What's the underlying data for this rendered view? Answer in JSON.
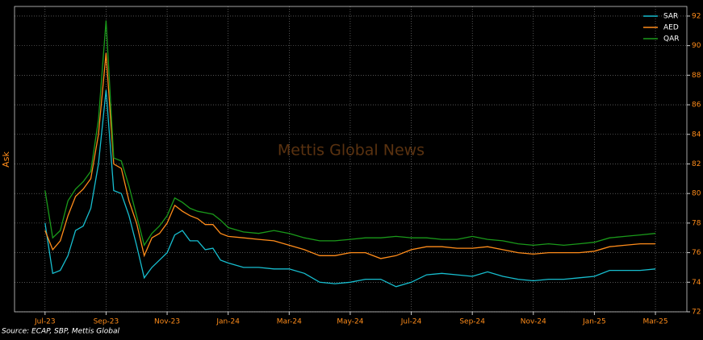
{
  "chart_data": {
    "type": "line",
    "watermark": "Mettis Global News",
    "ylabel": "Ask",
    "source": "Source: ECAP, SBP, Mettis Global",
    "legend": "upper right",
    "grid": true,
    "x": [
      0,
      0.25,
      0.5,
      0.75,
      1,
      1.25,
      1.5,
      1.75,
      2,
      2.25,
      2.5,
      2.75,
      3,
      3.25,
      3.5,
      3.75,
      4,
      4.25,
      4.5,
      4.75,
      5,
      5.25,
      5.5,
      5.75,
      6,
      6.5,
      7,
      7.5,
      8,
      8.5,
      9,
      9.5,
      10,
      10.5,
      11,
      11.5,
      12,
      12.5,
      13,
      13.5,
      14,
      14.5,
      15,
      15.5,
      16,
      16.5,
      17,
      17.5,
      18,
      18.5,
      19,
      19.5,
      20
    ],
    "xlim": [
      -1,
      21.03
    ],
    "xticks": [
      {
        "value": 0,
        "label": "Jul-23"
      },
      {
        "value": 2,
        "label": "Sep-23"
      },
      {
        "value": 4,
        "label": "Nov-23"
      },
      {
        "value": 6,
        "label": "Jan-24"
      },
      {
        "value": 8,
        "label": "Mar-24"
      },
      {
        "value": 10,
        "label": "May-24"
      },
      {
        "value": 12,
        "label": "Jul-24"
      },
      {
        "value": 14,
        "label": "Sep-24"
      },
      {
        "value": 16,
        "label": "Nov-24"
      },
      {
        "value": 18,
        "label": "Jan-25"
      },
      {
        "value": 20,
        "label": "Mar-25"
      }
    ],
    "ylim": [
      72,
      92.65
    ],
    "yticks": [
      72,
      74,
      76,
      78,
      80,
      82,
      84,
      86,
      88,
      90,
      92
    ],
    "series": [
      {
        "name": "SAR",
        "color": "#17becf",
        "values": [
          78.0,
          74.6,
          74.8,
          75.8,
          77.5,
          77.8,
          79,
          82,
          87,
          80.2,
          80.0,
          78.5,
          76.5,
          74.3,
          75.0,
          75.5,
          76.0,
          77.2,
          77.5,
          76.8,
          76.8,
          76.2,
          76.3,
          75.5,
          75.3,
          75.0,
          75.0,
          74.9,
          74.9,
          74.6,
          74.0,
          73.9,
          74.0,
          74.2,
          74.2,
          73.7,
          74.0,
          74.5,
          74.6,
          74.5,
          74.4,
          74.7,
          74.4,
          74.2,
          74.1,
          74.2,
          74.2,
          74.3,
          74.4,
          74.8,
          74.8,
          74.8,
          74.9
        ]
      },
      {
        "name": "AED",
        "color": "#ff8c1a",
        "values": [
          77.5,
          76.2,
          76.8,
          78.5,
          79.8,
          80.3,
          81.0,
          84,
          89.5,
          82,
          81.7,
          79.5,
          78,
          75.8,
          77.0,
          77.3,
          78.0,
          79.2,
          78.8,
          78.5,
          78.3,
          77.9,
          77.9,
          77.3,
          77.1,
          77.0,
          76.9,
          76.8,
          76.5,
          76.2,
          75.8,
          75.8,
          76.0,
          76.0,
          75.6,
          75.8,
          76.2,
          76.4,
          76.4,
          76.3,
          76.3,
          76.4,
          76.2,
          76.0,
          75.9,
          76.0,
          76.0,
          76.0,
          76.1,
          76.4,
          76.5,
          76.6,
          76.6
        ]
      },
      {
        "name": "QAR",
        "color": "#1a9a1a",
        "values": [
          80.2,
          77.0,
          77.5,
          79.5,
          80.3,
          80.8,
          81.5,
          85,
          91.7,
          82.4,
          82.2,
          80.5,
          78.5,
          76.5,
          77.3,
          77.8,
          78.5,
          79.7,
          79.4,
          79.0,
          78.8,
          78.7,
          78.6,
          78.2,
          77.7,
          77.4,
          77.3,
          77.5,
          77.3,
          77.0,
          76.8,
          76.8,
          76.9,
          77.0,
          77.0,
          77.1,
          77.0,
          77.0,
          76.9,
          76.9,
          77.1,
          76.9,
          76.8,
          76.6,
          76.5,
          76.6,
          76.5,
          76.6,
          76.7,
          77.0,
          77.1,
          77.2,
          77.3
        ]
      }
    ]
  }
}
